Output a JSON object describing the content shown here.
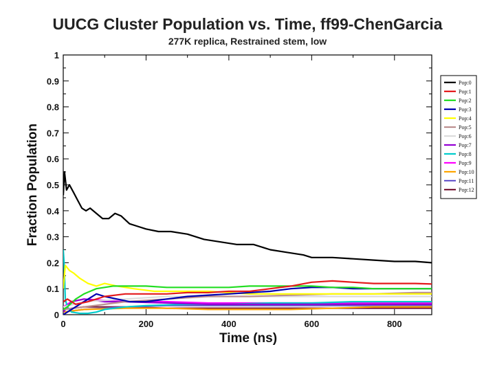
{
  "chart_data": {
    "type": "line",
    "title": "UUCG Cluster Population vs. Time, ff99-ChenGarcia",
    "subtitle": "277K replica, Restrained stem, low",
    "xlabel": "Time (ns)",
    "ylabel": "Fraction Population",
    "xlim": [
      0,
      890
    ],
    "ylim": [
      0,
      1
    ],
    "xticks": [
      "0",
      "200",
      "400",
      "600",
      "800"
    ],
    "yticks": [
      "0",
      "0.1",
      "0.2",
      "0.3",
      "0.4",
      "0.5",
      "0.6",
      "0.7",
      "0.8",
      "0.9",
      "1"
    ],
    "grid": false,
    "legend_position": "right",
    "series": [
      {
        "name": "Pop:0",
        "color": "#000000",
        "x": [
          0,
          3,
          8,
          15,
          25,
          35,
          45,
          55,
          65,
          80,
          95,
          110,
          125,
          140,
          160,
          180,
          200,
          230,
          260,
          300,
          340,
          380,
          420,
          460,
          500,
          540,
          580,
          600,
          650,
          700,
          750,
          800,
          850,
          890
        ],
        "y": [
          0.46,
          0.55,
          0.48,
          0.5,
          0.47,
          0.44,
          0.41,
          0.4,
          0.41,
          0.39,
          0.37,
          0.37,
          0.39,
          0.38,
          0.35,
          0.34,
          0.33,
          0.32,
          0.32,
          0.31,
          0.29,
          0.28,
          0.27,
          0.27,
          0.25,
          0.24,
          0.23,
          0.22,
          0.22,
          0.215,
          0.21,
          0.205,
          0.205,
          0.2
        ]
      },
      {
        "name": "Pop:1",
        "color": "#e41a1c",
        "x": [
          0,
          10,
          30,
          60,
          100,
          150,
          200,
          250,
          300,
          350,
          400,
          450,
          500,
          550,
          600,
          650,
          700,
          750,
          800,
          850,
          890
        ],
        "y": [
          0.05,
          0.06,
          0.04,
          0.05,
          0.07,
          0.08,
          0.08,
          0.08,
          0.085,
          0.085,
          0.09,
          0.09,
          0.1,
          0.11,
          0.125,
          0.13,
          0.125,
          0.12,
          0.12,
          0.12,
          0.118
        ]
      },
      {
        "name": "Pop:2",
        "color": "#22dd22",
        "x": [
          0,
          10,
          30,
          50,
          80,
          120,
          160,
          200,
          250,
          300,
          350,
          400,
          450,
          500,
          550,
          600,
          650,
          700,
          750,
          800,
          850,
          890
        ],
        "y": [
          0.02,
          0.03,
          0.06,
          0.08,
          0.1,
          0.11,
          0.11,
          0.11,
          0.105,
          0.105,
          0.105,
          0.105,
          0.11,
          0.11,
          0.11,
          0.11,
          0.105,
          0.105,
          0.1,
          0.1,
          0.1,
          0.1
        ]
      },
      {
        "name": "Pop:3",
        "color": "#0000b0",
        "x": [
          0,
          20,
          50,
          80,
          100,
          130,
          160,
          200,
          250,
          300,
          350,
          400,
          450,
          500,
          550,
          600,
          650,
          700,
          750,
          800,
          850,
          890
        ],
        "y": [
          0.0,
          0.02,
          0.05,
          0.08,
          0.07,
          0.06,
          0.05,
          0.05,
          0.06,
          0.07,
          0.075,
          0.08,
          0.085,
          0.09,
          0.1,
          0.105,
          0.105,
          0.1,
          0.1,
          0.1,
          0.1,
          0.1
        ]
      },
      {
        "name": "Pop:4",
        "color": "#ffff00",
        "x": [
          0,
          5,
          15,
          25,
          40,
          60,
          80,
          100,
          130,
          170,
          220,
          280,
          350,
          450,
          550,
          650,
          750,
          850,
          890
        ],
        "y": [
          0.1,
          0.19,
          0.17,
          0.16,
          0.14,
          0.12,
          0.11,
          0.12,
          0.11,
          0.1,
          0.09,
          0.09,
          0.09,
          0.08,
          0.08,
          0.08,
          0.08,
          0.08,
          0.08
        ]
      },
      {
        "name": "Pop:5",
        "color": "#bc8f8f",
        "x": [
          0,
          50,
          150,
          250,
          350,
          450,
          550,
          650,
          750,
          850,
          890
        ],
        "y": [
          0.02,
          0.03,
          0.05,
          0.06,
          0.07,
          0.07,
          0.075,
          0.08,
          0.08,
          0.085,
          0.085
        ]
      },
      {
        "name": "Pop:6",
        "color": "#dcdcdc",
        "x": [
          0,
          50,
          150,
          250,
          350,
          450,
          550,
          650,
          750,
          850,
          890
        ],
        "y": [
          0.03,
          0.05,
          0.06,
          0.07,
          0.07,
          0.07,
          0.07,
          0.07,
          0.07,
          0.07,
          0.07
        ]
      },
      {
        "name": "Pop:7",
        "color": "#9400d3",
        "x": [
          0,
          20,
          50,
          100,
          150,
          250,
          350,
          450,
          550,
          650,
          750,
          850,
          890
        ],
        "y": [
          0.01,
          0.05,
          0.06,
          0.05,
          0.05,
          0.045,
          0.04,
          0.04,
          0.04,
          0.04,
          0.04,
          0.04,
          0.04
        ]
      },
      {
        "name": "Pop:8",
        "color": "#00cccc",
        "x": [
          0,
          2,
          5,
          10,
          20,
          40,
          60,
          80,
          100,
          150,
          200,
          300,
          400,
          500,
          600,
          700,
          800,
          890
        ],
        "y": [
          0.25,
          0.2,
          0.06,
          0.03,
          0.01,
          0.005,
          0.005,
          0.01,
          0.02,
          0.03,
          0.035,
          0.04,
          0.04,
          0.045,
          0.045,
          0.05,
          0.05,
          0.05
        ]
      },
      {
        "name": "Pop:9",
        "color": "#ff00ff",
        "x": [
          0,
          20,
          50,
          100,
          150,
          250,
          350,
          450,
          550,
          650,
          750,
          850,
          890
        ],
        "y": [
          0.03,
          0.05,
          0.06,
          0.055,
          0.05,
          0.05,
          0.045,
          0.045,
          0.045,
          0.045,
          0.045,
          0.045,
          0.045
        ]
      },
      {
        "name": "Pop:10",
        "color": "#ffa500",
        "x": [
          0,
          50,
          150,
          250,
          350,
          450,
          550,
          650,
          750,
          850,
          890
        ],
        "y": [
          0.01,
          0.02,
          0.025,
          0.025,
          0.02,
          0.02,
          0.02,
          0.025,
          0.03,
          0.03,
          0.03
        ]
      },
      {
        "name": "Pop:11",
        "color": "#6a5acd",
        "x": [
          0,
          50,
          150,
          250,
          350,
          450,
          550,
          650,
          750,
          850,
          890
        ],
        "y": [
          0.01,
          0.02,
          0.03,
          0.035,
          0.035,
          0.035,
          0.035,
          0.035,
          0.035,
          0.035,
          0.035
        ]
      },
      {
        "name": "Pop:12",
        "color": "#7b1e3a",
        "x": [
          0,
          50,
          150,
          250,
          350,
          450,
          550,
          650,
          750,
          850,
          890
        ],
        "y": [
          0.02,
          0.03,
          0.03,
          0.025,
          0.025,
          0.025,
          0.025,
          0.025,
          0.025,
          0.025,
          0.025
        ]
      }
    ]
  }
}
